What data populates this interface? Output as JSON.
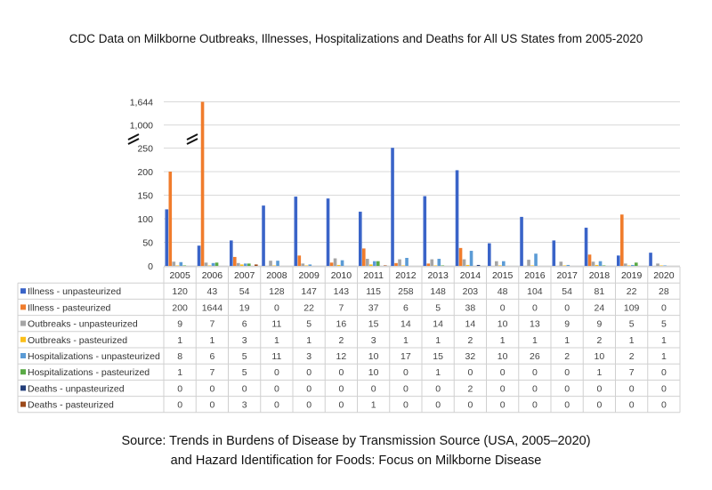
{
  "chart_data": {
    "type": "bar",
    "title": "CDC Data on Milkborne Outbreaks, Illnesses, Hospitalizations and Deaths for All US States from 2005-2020",
    "categories": [
      "2005",
      "2006",
      "2007",
      "2008",
      "2009",
      "2010",
      "2011",
      "2012",
      "2013",
      "2014",
      "2015",
      "2016",
      "2017",
      "2018",
      "2019",
      "2020"
    ],
    "y_ticks": [
      "0",
      "50",
      "100",
      "150",
      "200",
      "250",
      "1,000",
      "1,644"
    ],
    "y_tick_values": [
      0,
      50,
      100,
      150,
      200,
      250,
      1000,
      1644
    ],
    "axis_break": [
      250,
      1000
    ],
    "grid": true,
    "legend_placement": "data-table-left",
    "series": [
      {
        "name": "Illness - unpasteurized",
        "color": "#3a64c8",
        "values": [
          120,
          43,
          54,
          128,
          147,
          143,
          115,
          258,
          148,
          203,
          48,
          104,
          54,
          81,
          22,
          28
        ]
      },
      {
        "name": "Illness - pasteurized",
        "color": "#f07c2c",
        "values": [
          200,
          1644,
          19,
          0,
          22,
          7,
          37,
          6,
          5,
          38,
          0,
          0,
          0,
          24,
          109,
          0
        ]
      },
      {
        "name": "Outbreaks - unpasteurized",
        "color": "#a5a5a5",
        "values": [
          9,
          7,
          6,
          11,
          5,
          16,
          15,
          14,
          14,
          14,
          10,
          13,
          9,
          9,
          5,
          5
        ]
      },
      {
        "name": "Outbreaks - pasteurized",
        "color": "#fbbf1a",
        "values": [
          1,
          1,
          3,
          1,
          1,
          2,
          3,
          1,
          1,
          2,
          1,
          1,
          1,
          2,
          1,
          1
        ]
      },
      {
        "name": "Hospitalizations - unpasteurized",
        "color": "#5b9bd5",
        "values": [
          8,
          6,
          5,
          11,
          3,
          12,
          10,
          17,
          15,
          32,
          10,
          26,
          2,
          10,
          2,
          1
        ]
      },
      {
        "name": "Hospitalizations - pasteurized",
        "color": "#5aaa46",
        "values": [
          1,
          7,
          5,
          0,
          0,
          0,
          10,
          0,
          1,
          0,
          0,
          0,
          0,
          1,
          7,
          0
        ]
      },
      {
        "name": "Deaths - unpasteurized",
        "color": "#243f7a",
        "values": [
          0,
          0,
          0,
          0,
          0,
          0,
          0,
          0,
          0,
          2,
          0,
          0,
          0,
          0,
          0,
          0
        ]
      },
      {
        "name": "Deaths - pasteurized",
        "color": "#9c4a1a",
        "values": [
          0,
          0,
          3,
          0,
          0,
          0,
          1,
          0,
          0,
          0,
          0,
          0,
          0,
          0,
          0,
          0
        ]
      }
    ]
  },
  "source_line1": "Source: Trends in Burdens of Disease by Transmission Source (USA, 2005–2020)",
  "source_line2": "and Hazard Identification for Foods: Focus on Milkborne Disease"
}
